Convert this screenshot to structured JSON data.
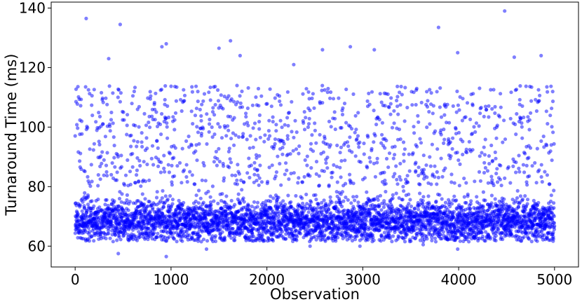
{
  "chart_data": {
    "type": "scatter",
    "title": "",
    "xlabel": "Observation",
    "ylabel": "Turnaround Time (ms)",
    "xlim": [
      -250,
      5250
    ],
    "ylim": [
      53,
      142
    ],
    "xticks": [
      0,
      1000,
      2000,
      3000,
      4000,
      5000
    ],
    "yticks": [
      60,
      80,
      100,
      120,
      140
    ],
    "grid": false,
    "series": [
      {
        "color": "#0000ff",
        "opacity": 0.5,
        "marker": "circle",
        "count": 5000,
        "x_range": [
          0,
          4999
        ],
        "distribution": "bimodal: dense cluster ~62-78 ms (center ~68), sparse band ~80-115 ms",
        "outliers": [
          {
            "x": 115,
            "y": 136.5
          },
          {
            "x": 470,
            "y": 134.5
          },
          {
            "x": 4480,
            "y": 139
          },
          {
            "x": 3790,
            "y": 133.5
          },
          {
            "x": 1620,
            "y": 129
          },
          {
            "x": 950,
            "y": 128
          },
          {
            "x": 905,
            "y": 127
          },
          {
            "x": 2870,
            "y": 127
          },
          {
            "x": 2580,
            "y": 126
          },
          {
            "x": 3120,
            "y": 126
          },
          {
            "x": 1500,
            "y": 126.5
          },
          {
            "x": 3990,
            "y": 125
          },
          {
            "x": 4860,
            "y": 124
          },
          {
            "x": 1720,
            "y": 124
          },
          {
            "x": 350,
            "y": 123
          },
          {
            "x": 2280,
            "y": 121
          },
          {
            "x": 4580,
            "y": 123.5
          },
          {
            "x": 950,
            "y": 56.5
          },
          {
            "x": 450,
            "y": 57.5
          },
          {
            "x": 1370,
            "y": 59
          },
          {
            "x": 3990,
            "y": 59
          },
          {
            "x": 2970,
            "y": 60
          },
          {
            "x": 2450,
            "y": 60
          },
          {
            "x": 3630,
            "y": 60.5
          }
        ]
      }
    ]
  }
}
